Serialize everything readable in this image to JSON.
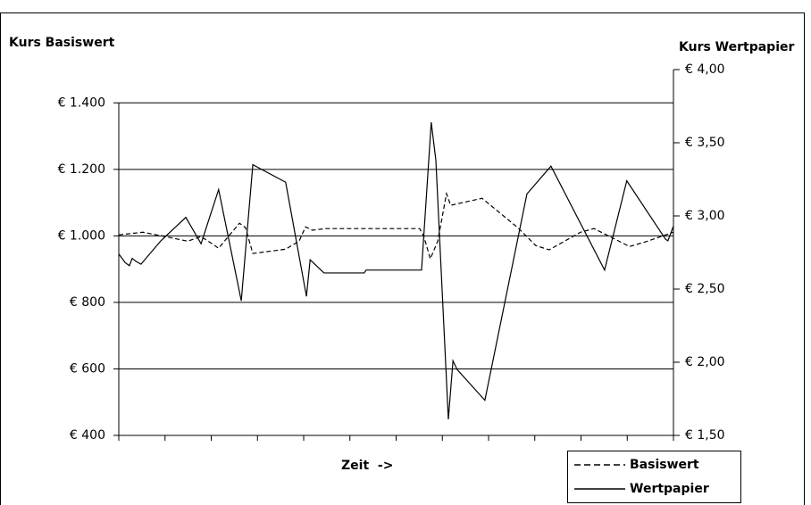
{
  "chart_data": {
    "type": "line",
    "y_label": "Kurs Basiswert",
    "y2_label": "Kurs Wertpapier",
    "x_label": "Zeit  ->",
    "xlim": [
      0,
      120
    ],
    "xticks": [
      0,
      10,
      20,
      30,
      40,
      50,
      60,
      70,
      80,
      90,
      100,
      110,
      120
    ],
    "ylim": [
      400,
      1500
    ],
    "yticks": [
      {
        "value": 400,
        "label": "€ 400"
      },
      {
        "value": 600,
        "label": "€ 600"
      },
      {
        "value": 800,
        "label": "€ 800"
      },
      {
        "value": 1000,
        "label": "€ 1.000"
      },
      {
        "value": 1200,
        "label": "€ 1.200"
      },
      {
        "value": 1400,
        "label": "€ 1.400"
      }
    ],
    "y2lim": [
      1.5,
      4.0
    ],
    "y2ticks": [
      {
        "value": 1.5,
        "label": "€ 1,50"
      },
      {
        "value": 2.0,
        "label": "€ 2,00"
      },
      {
        "value": 2.5,
        "label": "€ 2,50"
      },
      {
        "value": 3.0,
        "label": "€ 3,00"
      },
      {
        "value": 3.5,
        "label": "€ 3,50"
      },
      {
        "value": 4.0,
        "label": "€ 4,00"
      }
    ],
    "grid": true,
    "legend": "bottom-right",
    "series": [
      {
        "name": "Basiswert",
        "color": "#000000",
        "line_style": "dashed",
        "x": [
          0,
          5.2,
          10,
          14.9,
          17.8,
          21.6,
          26.1,
          27.4,
          29,
          36.1,
          39,
          40.4,
          41.9,
          44.8,
          65.1,
          66,
          67.4,
          69,
          70.9,
          71.8,
          78.6,
          86.3,
          90.2,
          93.1,
          99.9,
          102.8,
          110.5,
          114.4,
          120
        ],
        "values": [
          1003,
          1011,
          998,
          984,
          998,
          963,
          1038,
          1025,
          947,
          960,
          984,
          1027,
          1017,
          1022,
          1022,
          998,
          931,
          984,
          1127,
          1092,
          1113,
          1025,
          971,
          958,
          1011,
          1022,
          968,
          984,
          1011
        ]
      },
      {
        "name": "Wertpapier",
        "color": "#000000",
        "line_style": "solid",
        "axis": "y2",
        "x": [
          0,
          1.4,
          2.3,
          2.9,
          3.7,
          4.8,
          9.1,
          14.5,
          17.8,
          21.6,
          26.5,
          29,
          36.1,
          40.6,
          41.4,
          44.4,
          53.1,
          53.5,
          65.5,
          67.6,
          68.6,
          71.3,
          72.3,
          73.2,
          79.2,
          88.3,
          93.5,
          105.1,
          109.9,
          118.3,
          118.8,
          120
        ],
        "values": [
          2.74,
          2.68,
          2.66,
          2.71,
          2.69,
          2.67,
          2.83,
          2.99,
          2.81,
          3.18,
          2.42,
          3.35,
          3.23,
          2.45,
          2.7,
          2.61,
          2.61,
          2.63,
          2.63,
          3.64,
          3.38,
          1.61,
          2.01,
          1.95,
          1.74,
          3.15,
          3.34,
          2.63,
          3.24,
          2.84,
          2.83,
          2.93
        ]
      }
    ]
  }
}
